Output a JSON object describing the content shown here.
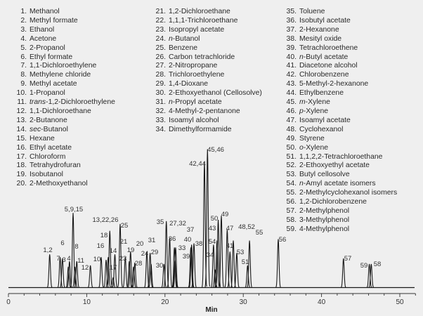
{
  "legend": [
    [
      {
        "num": "1.",
        "italic": "",
        "text": "Methanol"
      },
      {
        "num": "2.",
        "italic": "",
        "text": "Methyl formate"
      },
      {
        "num": "3.",
        "italic": "",
        "text": "Ethanol"
      },
      {
        "num": "4.",
        "italic": "",
        "text": "Acetone"
      },
      {
        "num": "5.",
        "italic": "",
        "text": "2-Propanol"
      },
      {
        "num": "6.",
        "italic": "",
        "text": "Ethyl formate"
      },
      {
        "num": "7.",
        "italic": "",
        "text": "1,1-Dichloroethylene"
      },
      {
        "num": "8.",
        "italic": "",
        "text": "Methylene chloride"
      },
      {
        "num": "9.",
        "italic": "",
        "text": "Methyl acetate"
      },
      {
        "num": "10.",
        "italic": "",
        "text": "1-Propanol"
      },
      {
        "num": "11.",
        "italic": "trans",
        "text": "-1,2-Dichloroethylene"
      },
      {
        "num": "12.",
        "italic": "",
        "text": "1,1-Dichloroethane"
      },
      {
        "num": "13.",
        "italic": "",
        "text": "2-Butanone"
      },
      {
        "num": "14.",
        "italic": "sec",
        "text": "-Butanol"
      },
      {
        "num": "15.",
        "italic": "",
        "text": "Hexane"
      },
      {
        "num": "16.",
        "italic": "",
        "text": "Ethyl acetate"
      },
      {
        "num": "17.",
        "italic": "",
        "text": "Chloroform"
      },
      {
        "num": "18.",
        "italic": "",
        "text": "Tetrahydrofuran"
      },
      {
        "num": "19.",
        "italic": "",
        "text": "Isobutanol"
      },
      {
        "num": "20.",
        "italic": "",
        "text": "2-Methoxyethanol"
      }
    ],
    [
      {
        "num": "21.",
        "italic": "",
        "text": "1,2-Dichloroethane"
      },
      {
        "num": "22.",
        "italic": "",
        "text": "1,1,1-Trichloroethane"
      },
      {
        "num": "23.",
        "italic": "",
        "text": "Isopropyl acetate"
      },
      {
        "num": "24.",
        "italic": "n",
        "text": "-Butanol"
      },
      {
        "num": "25.",
        "italic": "",
        "text": "Benzene"
      },
      {
        "num": "26.",
        "italic": "",
        "text": "Carbon tetrachloride"
      },
      {
        "num": "27.",
        "italic": "",
        "text": "2-Nitropropane"
      },
      {
        "num": "28.",
        "italic": "",
        "text": "Trichloroethylene"
      },
      {
        "num": "29.",
        "italic": "",
        "text": "1,4-Dioxane"
      },
      {
        "num": "30.",
        "italic": "",
        "text": "2-Ethoxyethanol (Cellosolve)"
      },
      {
        "num": "31.",
        "italic": "n",
        "text": "-Propyl acetate"
      },
      {
        "num": "32.",
        "italic": "",
        "text": "4-Methyl-2-pentanone"
      },
      {
        "num": "33.",
        "italic": "",
        "text": "Isoamyl alcohol"
      },
      {
        "num": "34.",
        "italic": "",
        "text": "Dimethylformamide"
      }
    ],
    [
      {
        "num": "35.",
        "italic": "",
        "text": "Toluene"
      },
      {
        "num": "36.",
        "italic": "",
        "text": "Isobutyl acetate"
      },
      {
        "num": "37.",
        "italic": "",
        "text": "2-Hexanone"
      },
      {
        "num": "38.",
        "italic": "",
        "text": "Mesityl oxide"
      },
      {
        "num": "39.",
        "italic": "",
        "text": "Tetrachloroethene"
      },
      {
        "num": "40.",
        "italic": "n",
        "text": "-Butyl acetate"
      },
      {
        "num": "41.",
        "italic": "",
        "text": "Diacetone alcohol"
      },
      {
        "num": "42.",
        "italic": "",
        "text": "Chlorobenzene"
      },
      {
        "num": "43.",
        "italic": "",
        "text": "5-Methyl-2-hexanone"
      },
      {
        "num": "44.",
        "italic": "",
        "text": "Ethylbenzene"
      },
      {
        "num": "45.",
        "italic": "m",
        "text": "-Xylene"
      },
      {
        "num": "46.",
        "italic": "p",
        "text": "-Xylene"
      },
      {
        "num": "47.",
        "italic": "",
        "text": "Isoamyl acetate"
      },
      {
        "num": "48.",
        "italic": "",
        "text": "Cyclohexanol"
      },
      {
        "num": "49.",
        "italic": "",
        "text": "Styrene"
      },
      {
        "num": "50.",
        "italic": "o",
        "text": "-Xylene"
      },
      {
        "num": "51.",
        "italic": "",
        "text": "1,1,2,2-Tetrachloroethane"
      },
      {
        "num": "52.",
        "italic": "",
        "text": "2-Ethoxyethyl acetate"
      },
      {
        "num": "53.",
        "italic": "",
        "text": "Butyl cellosolve"
      },
      {
        "num": "54.",
        "italic": "n",
        "text": "-Amyl acetate isomers"
      },
      {
        "num": "55.",
        "italic": "",
        "text": "2-Methylcyclohexanol isomers"
      },
      {
        "num": "56.",
        "italic": "",
        "text": "1,2-Dichlorobenzene"
      },
      {
        "num": "57.",
        "italic": "",
        "text": "2-Methylphenol"
      },
      {
        "num": "58.",
        "italic": "",
        "text": "3-Methylphenol"
      },
      {
        "num": "59.",
        "italic": "",
        "text": "4-Methylphenol"
      }
    ]
  ],
  "chart_data": {
    "type": "line",
    "title": "",
    "xlabel": "Min",
    "ylabel": "",
    "xlim": [
      0,
      52
    ],
    "xticks": [
      0,
      10,
      20,
      30,
      40,
      50
    ],
    "ylim": [
      0,
      100
    ],
    "y_units": "relative intensity (%)",
    "grid": false,
    "line_color": "#1a1a1a",
    "peaks": [
      {
        "label": "1,2",
        "t": 5.27,
        "h": 24
      },
      {
        "label": "7",
        "t": 6.6,
        "h": 22
      },
      {
        "label": "3",
        "t": 6.9,
        "h": 21
      },
      {
        "label": "6",
        "t": 7.65,
        "h": 15
      },
      {
        "label": "4",
        "t": 7.8,
        "h": 19
      },
      {
        "label": "5,9,15",
        "t": 8.26,
        "h": 54
      },
      {
        "label": "8",
        "t": 8.5,
        "h": 15
      },
      {
        "label": "11",
        "t": 8.73,
        "h": 19
      },
      {
        "label": "12",
        "t": 10.47,
        "h": 16
      },
      {
        "label": "10",
        "t": 11.85,
        "h": 22
      },
      {
        "label": "16",
        "t": 12.48,
        "h": 20
      },
      {
        "label": "18",
        "t": 12.75,
        "h": 22
      },
      {
        "label": "13,22,26",
        "t": 12.95,
        "h": 41
      },
      {
        "label": "17",
        "t": 13.37,
        "h": 7
      },
      {
        "label": "14",
        "t": 13.6,
        "h": 24
      },
      {
        "label": "25",
        "t": 14.27,
        "h": 46
      },
      {
        "label": "23",
        "t": 14.93,
        "h": 22
      },
      {
        "label": "21",
        "t": 15.44,
        "h": 19
      },
      {
        "label": "19",
        "t": 15.6,
        "h": 26
      },
      {
        "label": "20",
        "t": 15.98,
        "h": 15
      },
      {
        "label": "28",
        "t": 16.15,
        "h": 18
      },
      {
        "label": "24",
        "t": 17.68,
        "h": 26
      },
      {
        "label": "31",
        "t": 18.1,
        "h": 25
      },
      {
        "label": "29",
        "t": 18.22,
        "h": 17
      },
      {
        "label": "30",
        "t": 19.87,
        "h": 17
      },
      {
        "label": "35",
        "t": 20.17,
        "h": 48
      },
      {
        "label": "27,32",
        "t": 20.6,
        "h": 36
      },
      {
        "label": "36",
        "t": 21.2,
        "h": 29
      },
      {
        "label": "39",
        "t": 21.28,
        "h": 20
      },
      {
        "label": "33",
        "t": 21.36,
        "h": 29
      },
      {
        "label": "40",
        "t": 23.3,
        "h": 29
      },
      {
        "label": "37",
        "t": 23.4,
        "h": 31
      },
      {
        "label": "38",
        "t": 23.7,
        "h": 32
      },
      {
        "label": "42,44",
        "t": 25.04,
        "h": 91
      },
      {
        "label": "45,46",
        "t": 25.43,
        "h": 100
      },
      {
        "label": "54",
        "t": 26.2,
        "h": 31
      },
      {
        "label": "34",
        "t": 26.4,
        "h": 13
      },
      {
        "label": "43",
        "t": 26.65,
        "h": 34
      },
      {
        "label": "50",
        "t": 26.8,
        "h": 49
      },
      {
        "label": "49",
        "t": 27.2,
        "h": 52
      },
      {
        "label": "47",
        "t": 27.95,
        "h": 42
      },
      {
        "label": "41",
        "t": 28.3,
        "h": 26
      },
      {
        "label": "48,52",
        "t": 28.73,
        "h": 34
      },
      {
        "label": "53",
        "t": 29.17,
        "h": 25
      },
      {
        "label": "51",
        "t": 30.55,
        "h": 16
      },
      {
        "label": "55",
        "t": 30.8,
        "h": 34
      },
      {
        "label": "56",
        "t": 34.47,
        "h": 35
      },
      {
        "label": "57",
        "t": 42.8,
        "h": 21
      },
      {
        "label": "59",
        "t": 46.1,
        "h": 17
      },
      {
        "label": "58",
        "t": 46.35,
        "h": 17
      }
    ]
  }
}
